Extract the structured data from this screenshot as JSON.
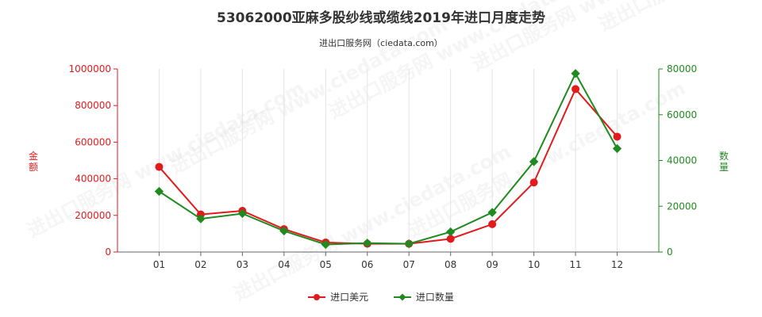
{
  "chart_data": {
    "type": "line",
    "title": "53062000亚麻多股纱线或缆线2019年进口月度走势",
    "subtitle": "进出口服务网（ciedata.com）",
    "categories": [
      "01",
      "02",
      "03",
      "04",
      "05",
      "06",
      "07",
      "08",
      "09",
      "10",
      "11",
      "12"
    ],
    "y_left": {
      "label": "金额",
      "range": [
        0,
        1000000
      ],
      "ticks": [
        "0",
        "200000",
        "400000",
        "600000",
        "800000",
        "1000000"
      ]
    },
    "y_right": {
      "label": "数量",
      "range": [
        0,
        80000
      ],
      "ticks": [
        "0",
        "20000",
        "40000",
        "60000",
        "80000"
      ]
    },
    "grid": "vertical",
    "legend_position": "bottom",
    "series": [
      {
        "name": "进口美元",
        "axis": "left",
        "color": "#e31a1c",
        "marker": "circle",
        "values": [
          465000,
          205000,
          225000,
          125000,
          52000,
          45000,
          45000,
          72000,
          152000,
          380000,
          890000,
          630000
        ]
      },
      {
        "name": "进口数量",
        "axis": "right",
        "color": "#1f8a1f",
        "marker": "diamond",
        "values": [
          26500,
          14500,
          16800,
          9200,
          3300,
          3900,
          3600,
          8800,
          17300,
          39500,
          78000,
          45200
        ]
      }
    ]
  },
  "watermark": "进出口服务网 www.ciedata.com"
}
